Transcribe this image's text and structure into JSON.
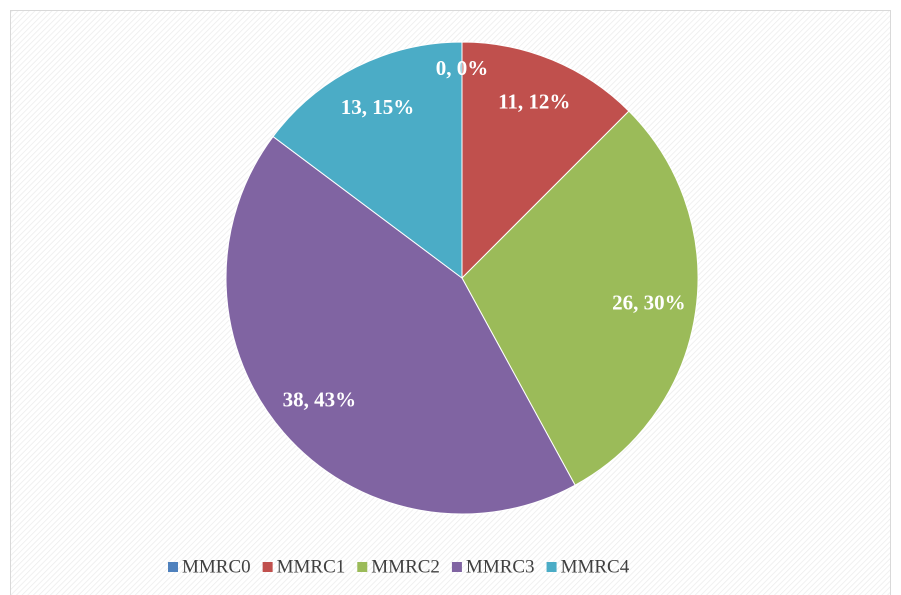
{
  "chart_data": {
    "type": "pie",
    "categories": [
      "MMRC0",
      "MMRC1",
      "MMRC2",
      "MMRC3",
      "MMRC4"
    ],
    "values": [
      0,
      11,
      26,
      38,
      13
    ],
    "value_labels": [
      "0, 0%",
      "11, 12%",
      "26, 30%",
      "38, 43%",
      "13, 15%"
    ],
    "colors": [
      "#4f81bd",
      "#c0504d",
      "#9bbb59",
      "#8064a2",
      "#4bacc6"
    ],
    "legend": "bottom"
  }
}
